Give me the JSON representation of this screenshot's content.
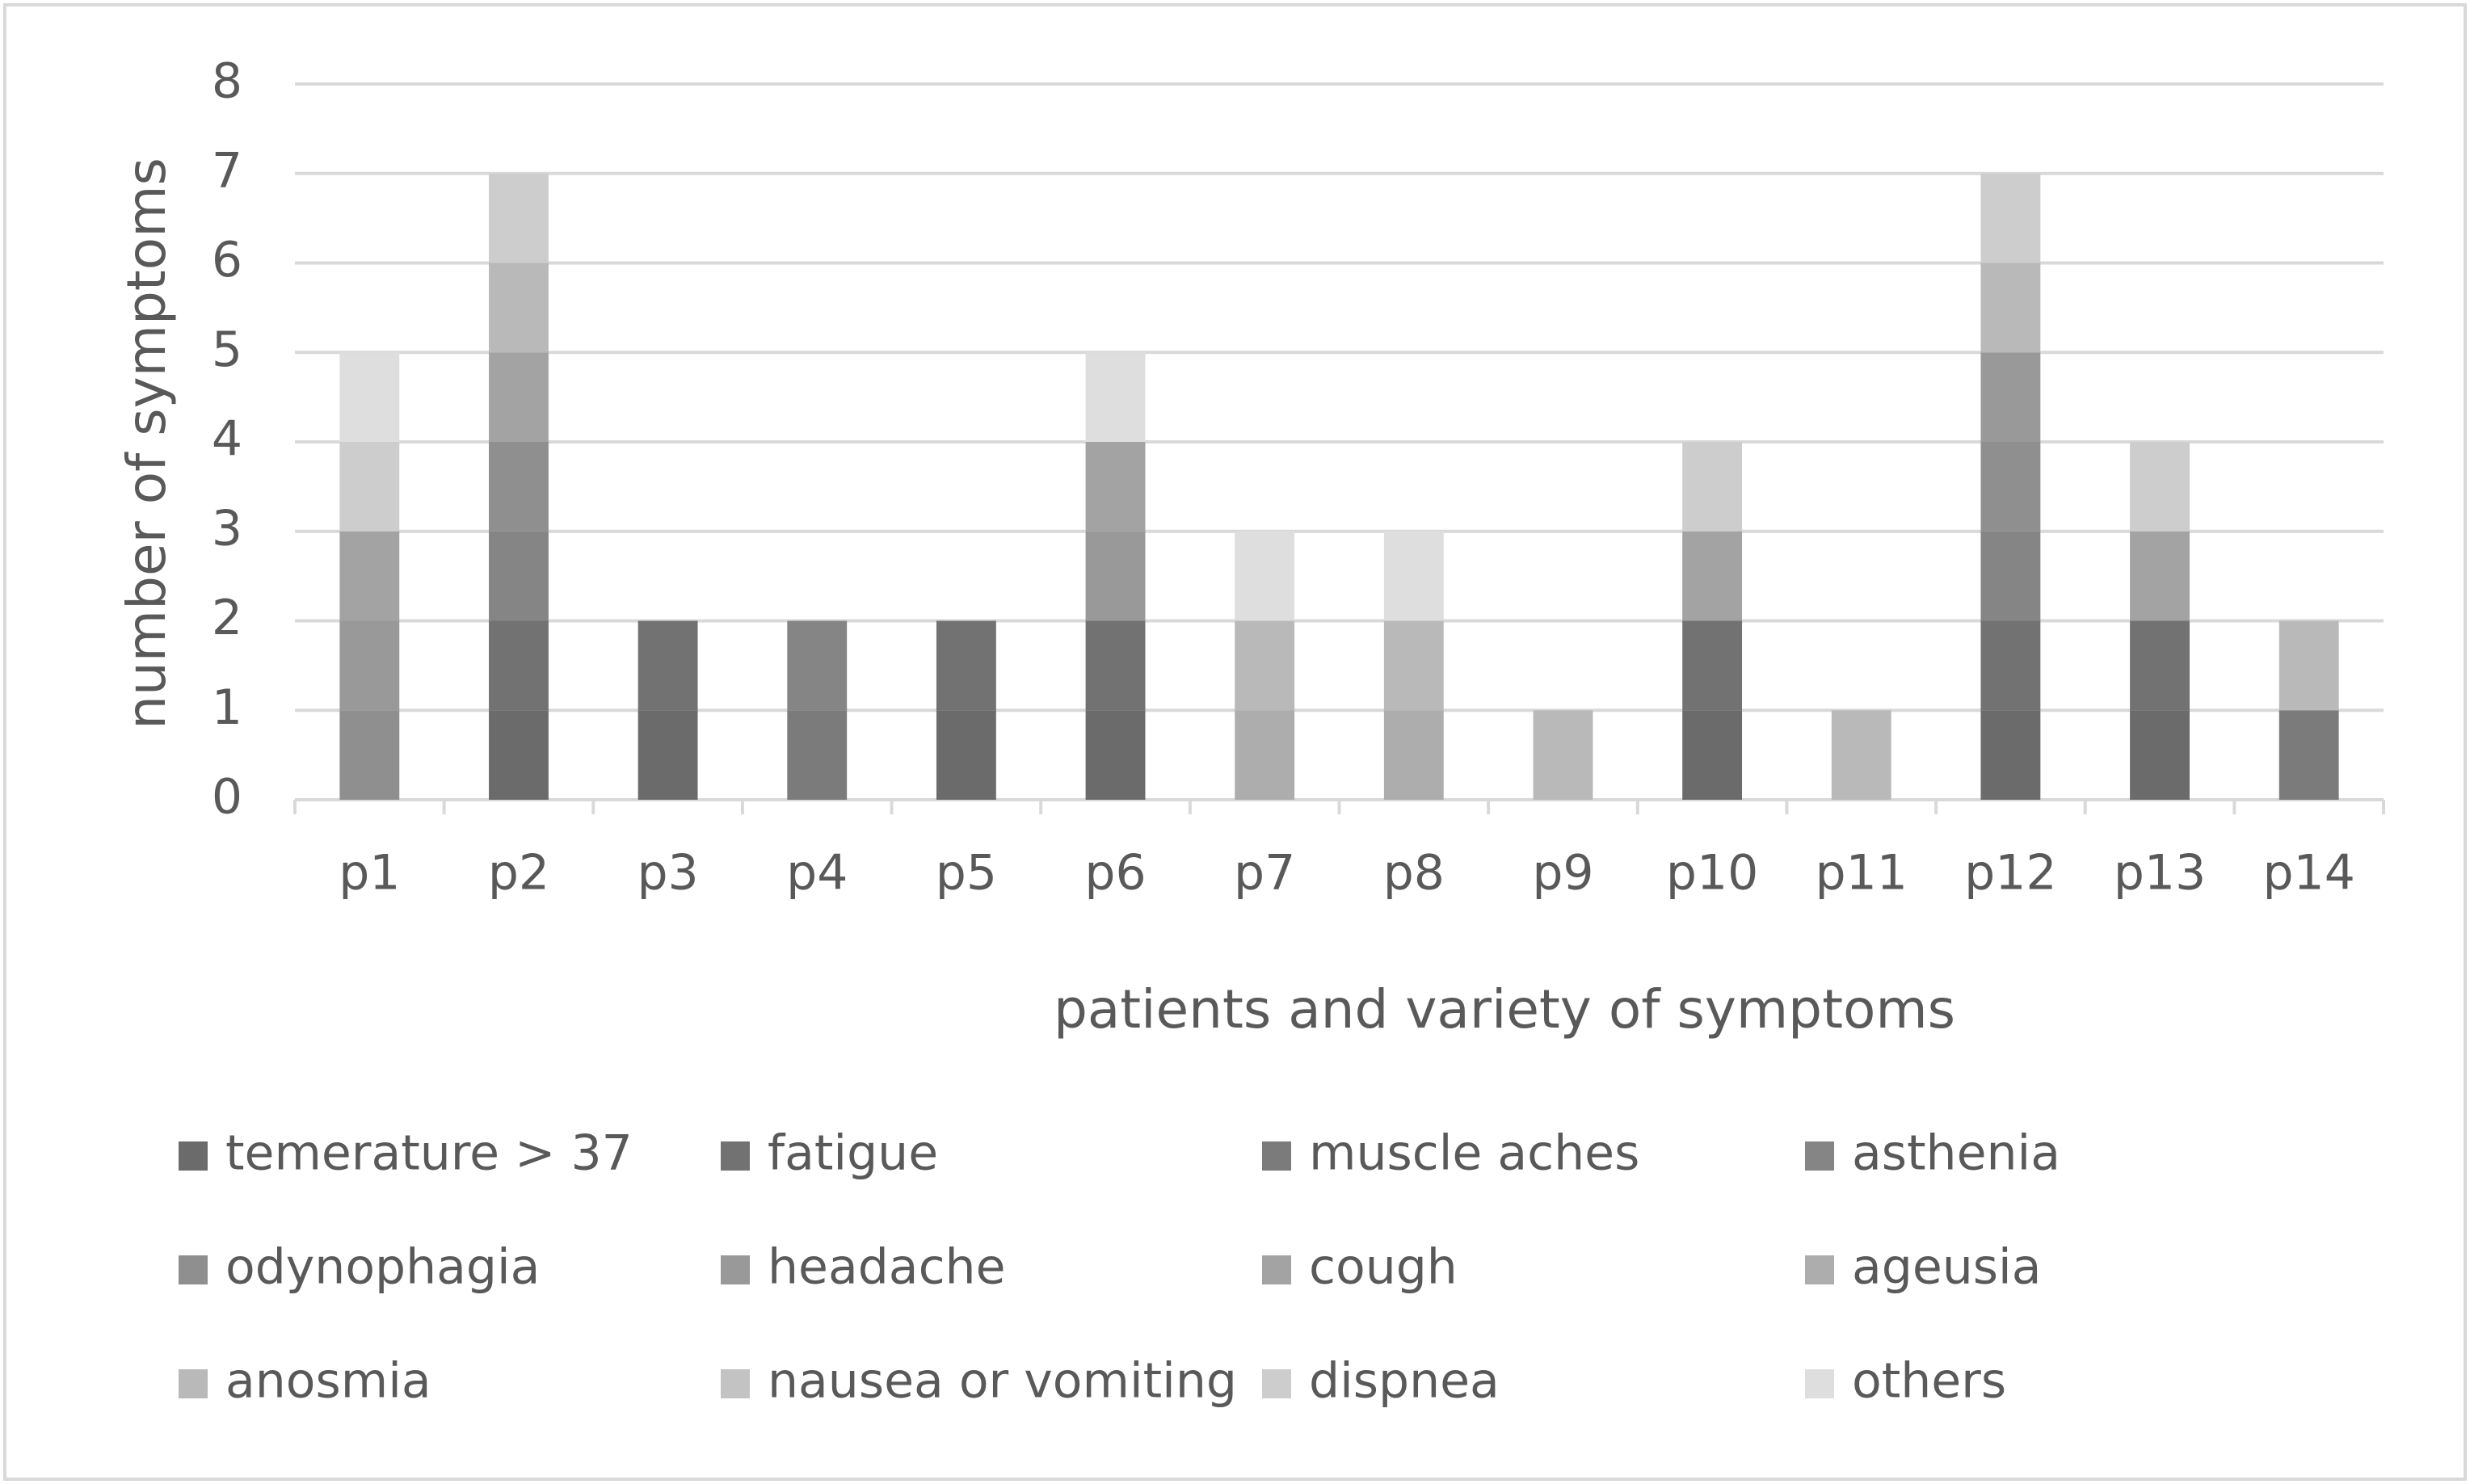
{
  "chart_data": {
    "type": "stacked_bar",
    "x_label": "patients and variety of symptoms",
    "y_label": "number of symptoms",
    "categories": [
      "p1",
      "p2",
      "p3",
      "p4",
      "p5",
      "p6",
      "p7",
      "p8",
      "p9",
      "p10",
      "p11",
      "p12",
      "p13",
      "p14"
    ],
    "ylim": [
      0,
      8
    ],
    "yticks": [
      0,
      1,
      2,
      3,
      4,
      5,
      6,
      7,
      8
    ],
    "grid": true,
    "legend": "bottom",
    "series": [
      {
        "name": "temerature > 37",
        "color": "#6b6b6b",
        "values": [
          0,
          1,
          1,
          0,
          1,
          1,
          0,
          0,
          0,
          1,
          0,
          1,
          1,
          0
        ]
      },
      {
        "name": "fatigue",
        "color": "#727272",
        "values": [
          0,
          1,
          1,
          0,
          1,
          1,
          0,
          0,
          0,
          1,
          0,
          1,
          1,
          0
        ]
      },
      {
        "name": "muscle aches",
        "color": "#7b7b7b",
        "values": [
          0,
          0,
          0,
          1,
          0,
          0,
          0,
          0,
          0,
          0,
          0,
          0,
          0,
          1
        ]
      },
      {
        "name": "asthenia",
        "color": "#858585",
        "values": [
          0,
          1,
          0,
          1,
          0,
          0,
          0,
          0,
          0,
          0,
          0,
          1,
          0,
          0
        ]
      },
      {
        "name": "odynophagia",
        "color": "#8f8f8f",
        "values": [
          1,
          1,
          0,
          0,
          0,
          0,
          0,
          0,
          0,
          0,
          0,
          1,
          0,
          0
        ]
      },
      {
        "name": "headache",
        "color": "#999999",
        "values": [
          1,
          0,
          0,
          0,
          0,
          1,
          0,
          0,
          0,
          0,
          0,
          1,
          0,
          0
        ]
      },
      {
        "name": "cough",
        "color": "#a3a3a3",
        "values": [
          1,
          1,
          0,
          0,
          0,
          1,
          0,
          0,
          0,
          1,
          0,
          0,
          1,
          0
        ]
      },
      {
        "name": "ageusia",
        "color": "#adadad",
        "values": [
          0,
          0,
          0,
          0,
          0,
          0,
          1,
          1,
          0,
          0,
          0,
          0,
          0,
          0
        ]
      },
      {
        "name": "anosmia",
        "color": "#b9b9b9",
        "values": [
          0,
          1,
          0,
          0,
          0,
          0,
          1,
          1,
          1,
          0,
          1,
          1,
          0,
          1
        ]
      },
      {
        "name": "nausea or vomiting",
        "color": "#c3c3c3",
        "values": [
          0,
          0,
          0,
          0,
          0,
          0,
          0,
          0,
          0,
          0,
          0,
          0,
          0,
          0
        ]
      },
      {
        "name": "dispnea",
        "color": "#cdcdcd",
        "values": [
          1,
          1,
          0,
          0,
          0,
          0,
          0,
          0,
          0,
          1,
          0,
          1,
          1,
          0
        ]
      },
      {
        "name": "others",
        "color": "#dedede",
        "values": [
          1,
          0,
          0,
          0,
          0,
          1,
          1,
          1,
          0,
          0,
          0,
          0,
          0,
          0
        ]
      }
    ]
  }
}
